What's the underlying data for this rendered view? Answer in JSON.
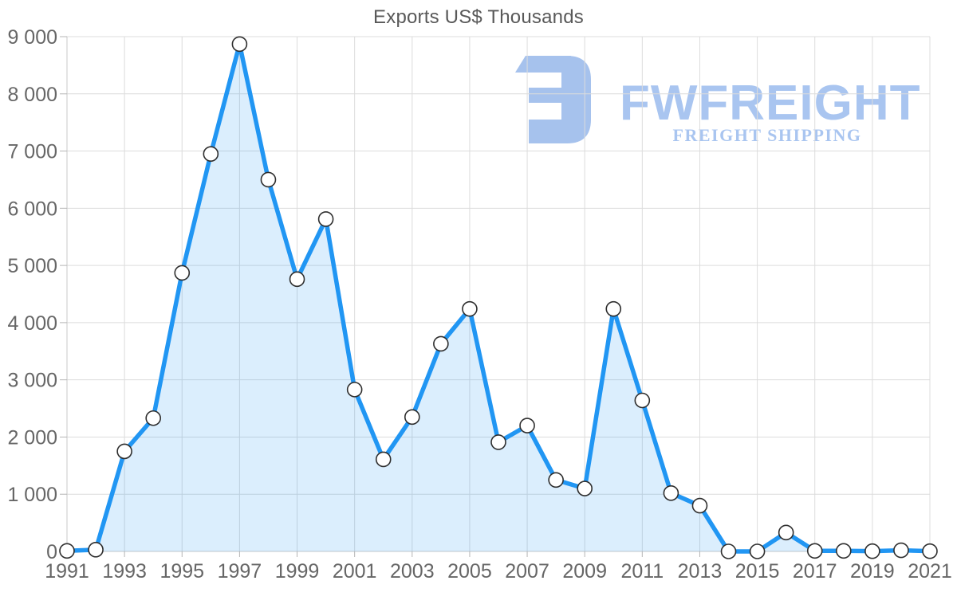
{
  "title": "Exports US$ Thousands",
  "watermark": {
    "brand": "FWFREIGHT",
    "tagline": "FREIGHT SHIPPING",
    "color": "#a6c2ed",
    "text_color": "#a9c5f0"
  },
  "axis_style": {
    "grid_color": "#dcdcdc",
    "axis_line_color": "#c9c9c9",
    "tick_color": "#b5b5b5",
    "label_color": "#666666",
    "title_color": "#595959"
  },
  "chart_data": {
    "type": "area",
    "title": "Exports US$ Thousands",
    "xlabel": "",
    "ylabel": "",
    "x": [
      1991,
      1992,
      1993,
      1994,
      1995,
      1996,
      1997,
      1998,
      1999,
      2000,
      2001,
      2002,
      2003,
      2004,
      2005,
      2006,
      2007,
      2008,
      2009,
      2010,
      2011,
      2012,
      2013,
      2014,
      2015,
      2016,
      2017,
      2018,
      2019,
      2020,
      2021
    ],
    "values": [
      10,
      30,
      1750,
      2330,
      4870,
      6950,
      8870,
      6500,
      4760,
      5810,
      2830,
      1610,
      2350,
      3630,
      4240,
      1910,
      2200,
      1250,
      1100,
      4240,
      2640,
      1020,
      800,
      0,
      0,
      330,
      10,
      10,
      5,
      20,
      5
    ],
    "ylim": [
      0,
      9000
    ],
    "y_ticks": [
      0,
      1000,
      2000,
      3000,
      4000,
      5000,
      6000,
      7000,
      8000,
      9000
    ],
    "y_tick_labels": [
      "0",
      "1 000",
      "2 000",
      "3 000",
      "4 000",
      "5 000",
      "6 000",
      "7 000",
      "8 000",
      "9 000"
    ],
    "x_ticks": [
      1991,
      1993,
      1995,
      1997,
      1999,
      2001,
      2003,
      2005,
      2007,
      2009,
      2011,
      2013,
      2015,
      2017,
      2019,
      2021
    ],
    "grid": true,
    "legend": "none",
    "line_color": "#2196f3",
    "area_fill": "rgba(33,150,243,0.16)",
    "marker": {
      "shape": "circle",
      "fill": "#ffffff",
      "stroke": "#2e2e2e",
      "radius": 9,
      "stroke_width": 1.6
    }
  }
}
